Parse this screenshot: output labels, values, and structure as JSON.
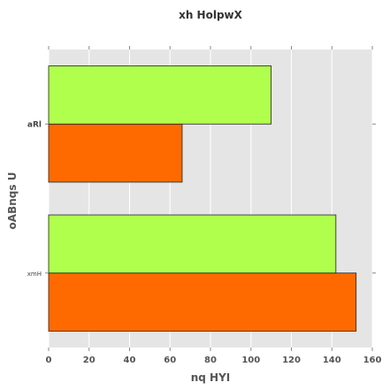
{
  "chart_data": {
    "type": "bar",
    "orientation": "horizontal",
    "title": "xh  HolpwX",
    "xlabel": "nq HYI",
    "ylabel": "oABnqs  U",
    "categories": [
      "xmH",
      "aRl"
    ],
    "series": [
      {
        "values": [
          152,
          66
        ],
        "color": "#ff6a00"
      },
      {
        "values": [
          142,
          110
        ],
        "color": "#b0ff4c"
      }
    ],
    "xlim": [
      0,
      160
    ],
    "xticks": [
      0,
      20,
      40,
      60,
      80,
      100,
      120,
      140,
      160
    ],
    "grid": true,
    "background": "#e5e5e5",
    "grid_color": "#ffffff"
  }
}
